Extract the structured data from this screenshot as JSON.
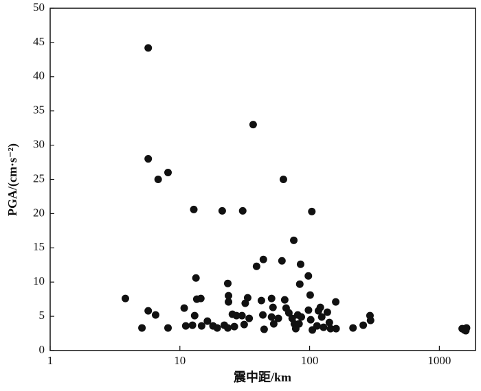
{
  "chart_data": {
    "type": "scatter",
    "xlabel": "震中距/km",
    "ylabel": "PGA/(cm·s⁻²)",
    "xscale": "log",
    "xlim": [
      1,
      1900
    ],
    "ylim": [
      0,
      50
    ],
    "xticks": [
      1,
      10,
      100,
      1000
    ],
    "yticks": [
      0,
      5,
      10,
      15,
      20,
      25,
      30,
      35,
      40,
      45,
      50
    ],
    "color": "#111111",
    "x": [
      5.7,
      5.7,
      6.8,
      8.1,
      3.8,
      5.1,
      5.7,
      6.5,
      8.1,
      12.8,
      21.2,
      30.5,
      36.7,
      62.8,
      75.5,
      104,
      13.3,
      13.5,
      14.5,
      10.8,
      13,
      11.1,
      12.5,
      14.7,
      16.3,
      18,
      19.4,
      22,
      23.4,
      23.7,
      23.7,
      25.4,
      27.3,
      23.4,
      26.3,
      30.1,
      31.9,
      33.3,
      34.2,
      31.3,
      39,
      44,
      42.5,
      43.6,
      44.6,
      50.9,
      52.2,
      50.9,
      52.9,
      57.4,
      61.2,
      64.3,
      65.9,
      69.2,
      73.4,
      76.3,
      78.2,
      81,
      82.9,
      85.2,
      84,
      86.3,
      97.8,
      101,
      98,
      102,
      105,
      114,
      117,
      121,
      124,
      128,
      137,
      142,
      145,
      159,
      160,
      216,
      259,
      292,
      295,
      1500,
      1560,
      1620,
      1600
    ],
    "y": [
      44.2,
      28,
      25,
      26,
      7.6,
      3.3,
      5.8,
      5.2,
      3.3,
      20.6,
      20.4,
      20.4,
      33,
      25,
      16.1,
      20.3,
      10.6,
      7.5,
      7.6,
      6.2,
      5.1,
      3.6,
      3.7,
      3.6,
      4.3,
      3.6,
      3.3,
      3.7,
      9.8,
      8,
      7.1,
      5.3,
      5.1,
      3.3,
      3.5,
      5.1,
      6.9,
      7.7,
      4.7,
      3.8,
      12.3,
      13.3,
      7.3,
      5.2,
      3.1,
      7.6,
      6.3,
      4.9,
      3.9,
      4.7,
      13.1,
      7.4,
      6.2,
      5.5,
      4.7,
      3.9,
      3.2,
      5.2,
      3.9,
      12.6,
      9.7,
      4.9,
      10.9,
      8.1,
      5.9,
      4.5,
      3,
      3.6,
      5.8,
      6.3,
      4.9,
      3.4,
      5.6,
      4.1,
      3.2,
      7.1,
      3.2,
      3.3,
      3.7,
      5.1,
      4.4,
      3.2,
      3,
      3.3,
      2.9
    ]
  }
}
